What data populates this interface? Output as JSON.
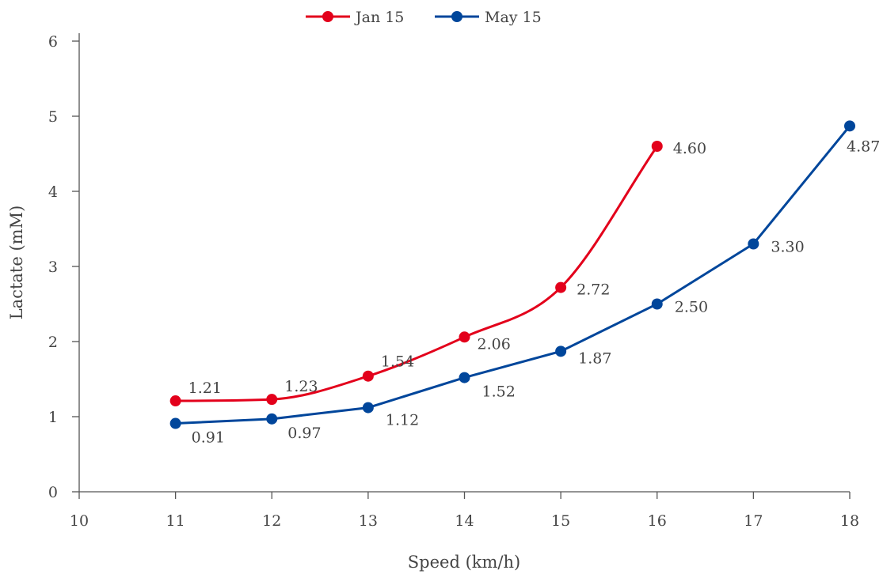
{
  "chart_data": {
    "type": "line",
    "xlabel": "Speed (km/h)",
    "ylabel": "Lactate (mM)",
    "xlim": [
      10,
      18
    ],
    "ylim": [
      0,
      6
    ],
    "x_ticks": [
      "10",
      "11",
      "12",
      "13",
      "14",
      "15",
      "16",
      "17",
      "18"
    ],
    "y_ticks": [
      "0",
      "1",
      "2",
      "3",
      "4",
      "5",
      "6"
    ],
    "grid": false,
    "legend_position": "top-center",
    "series": [
      {
        "name": "Jan 15",
        "color": "#e3001b",
        "smooth": true,
        "x": [
          11,
          12,
          13,
          14,
          15,
          16
        ],
        "values": [
          1.21,
          1.23,
          1.54,
          2.06,
          2.72,
          4.6
        ],
        "labels": [
          "1.21",
          "1.23",
          "1.54",
          "2.06",
          "2.72",
          "4.60"
        ]
      },
      {
        "name": "May 15",
        "color": "#00469b",
        "smooth": false,
        "x": [
          11,
          12,
          13,
          14,
          15,
          16,
          17,
          18
        ],
        "values": [
          0.91,
          0.97,
          1.12,
          1.52,
          1.87,
          2.5,
          3.3,
          4.87
        ],
        "labels": [
          "0.91",
          "0.97",
          "1.12",
          "1.52",
          "1.87",
          "2.50",
          "3.30",
          "4.87"
        ]
      }
    ]
  }
}
